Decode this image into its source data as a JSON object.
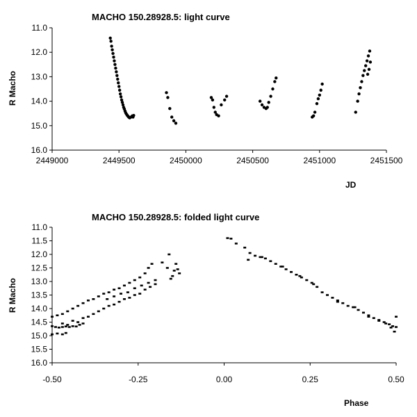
{
  "chart_data": [
    {
      "type": "scatter",
      "title": "MACHO 150.28928.5: light curve",
      "xlabel": "JD",
      "ylabel": "R Macho",
      "xlim": [
        2449000,
        2451500
      ],
      "ylim": [
        11.0,
        16.0
      ],
      "y_inverted": true,
      "grid": false,
      "xticks": [
        "2449000",
        "2449500",
        "2450000",
        "2450500",
        "2451000",
        "2451500"
      ],
      "yticks": [
        "11.0",
        "12.0",
        "13.0",
        "14.0",
        "15.0",
        "16.0"
      ],
      "marker_color": "#000000",
      "points": [
        [
          2449435,
          11.42
        ],
        [
          2449440,
          11.55
        ],
        [
          2449445,
          11.75
        ],
        [
          2449450,
          11.9
        ],
        [
          2449455,
          12.05
        ],
        [
          2449460,
          12.2
        ],
        [
          2449465,
          12.35
        ],
        [
          2449470,
          12.5
        ],
        [
          2449475,
          12.65
        ],
        [
          2449480,
          12.8
        ],
        [
          2449485,
          12.95
        ],
        [
          2449490,
          13.1
        ],
        [
          2449495,
          13.25
        ],
        [
          2449500,
          13.4
        ],
        [
          2449505,
          13.55
        ],
        [
          2449510,
          13.7
        ],
        [
          2449515,
          13.82
        ],
        [
          2449520,
          13.95
        ],
        [
          2449525,
          14.05
        ],
        [
          2449530,
          14.15
        ],
        [
          2449535,
          14.25
        ],
        [
          2449540,
          14.32
        ],
        [
          2449545,
          14.4
        ],
        [
          2449550,
          14.47
        ],
        [
          2449555,
          14.52
        ],
        [
          2449560,
          14.56
        ],
        [
          2449565,
          14.6
        ],
        [
          2449570,
          14.63
        ],
        [
          2449575,
          14.66
        ],
        [
          2449580,
          14.68
        ],
        [
          2449590,
          14.65
        ],
        [
          2449600,
          14.6
        ],
        [
          2449605,
          14.65
        ],
        [
          2449610,
          14.58
        ],
        [
          2449855,
          13.65
        ],
        [
          2449865,
          13.85
        ],
        [
          2449880,
          14.3
        ],
        [
          2449895,
          14.65
        ],
        [
          2449910,
          14.8
        ],
        [
          2449925,
          14.9
        ],
        [
          2450190,
          13.85
        ],
        [
          2450200,
          13.95
        ],
        [
          2450210,
          14.25
        ],
        [
          2450220,
          14.45
        ],
        [
          2450230,
          14.55
        ],
        [
          2450245,
          14.6
        ],
        [
          2450265,
          14.15
        ],
        [
          2450290,
          13.95
        ],
        [
          2450305,
          13.8
        ],
        [
          2450555,
          14.0
        ],
        [
          2450570,
          14.15
        ],
        [
          2450585,
          14.25
        ],
        [
          2450600,
          14.3
        ],
        [
          2450610,
          14.25
        ],
        [
          2450620,
          14.05
        ],
        [
          2450635,
          13.8
        ],
        [
          2450650,
          13.5
        ],
        [
          2450665,
          13.2
        ],
        [
          2450675,
          13.05
        ],
        [
          2450945,
          14.65
        ],
        [
          2450955,
          14.6
        ],
        [
          2450965,
          14.45
        ],
        [
          2450980,
          14.1
        ],
        [
          2450990,
          13.9
        ],
        [
          2451000,
          13.75
        ],
        [
          2451010,
          13.55
        ],
        [
          2451020,
          13.3
        ],
        [
          2451270,
          14.45
        ],
        [
          2451285,
          14.0
        ],
        [
          2451295,
          13.7
        ],
        [
          2451305,
          13.45
        ],
        [
          2451315,
          13.2
        ],
        [
          2451325,
          12.95
        ],
        [
          2451335,
          12.75
        ],
        [
          2451345,
          12.55
        ],
        [
          2451355,
          12.35
        ],
        [
          2451365,
          12.15
        ],
        [
          2451375,
          11.95
        ],
        [
          2451360,
          12.9
        ],
        [
          2451370,
          12.7
        ],
        [
          2451380,
          12.4
        ]
      ]
    },
    {
      "type": "scatter",
      "title": "MACHO 150.28928.5: folded light curve",
      "xlabel": "Phase",
      "ylabel": "R Macho",
      "xlim": [
        -0.5,
        0.5
      ],
      "ylim": [
        11.0,
        16.0
      ],
      "y_inverted": true,
      "grid": false,
      "xticks": [
        "-0.50",
        "-0.25",
        "0.00",
        "0.25",
        "0.50"
      ],
      "yticks": [
        "11.0",
        "11.5",
        "12.0",
        "12.5",
        "13.0",
        "13.5",
        "14.0",
        "14.5",
        "15.0",
        "15.5",
        "16.0"
      ],
      "marker_color": "#000000",
      "points": [
        [
          -0.5,
          14.65
        ],
        [
          -0.49,
          14.68
        ],
        [
          -0.48,
          14.7
        ],
        [
          -0.47,
          14.68
        ],
        [
          -0.46,
          14.66
        ],
        [
          -0.45,
          14.68
        ],
        [
          -0.44,
          14.65
        ],
        [
          -0.43,
          14.66
        ],
        [
          -0.42,
          14.6
        ],
        [
          -0.41,
          14.55
        ],
        [
          -0.5,
          14.95
        ],
        [
          -0.485,
          14.92
        ],
        [
          -0.47,
          14.95
        ],
        [
          -0.46,
          14.9
        ],
        [
          -0.5,
          14.3
        ],
        [
          -0.485,
          14.25
        ],
        [
          -0.47,
          14.2
        ],
        [
          -0.455,
          14.1
        ],
        [
          -0.44,
          14.0
        ],
        [
          -0.425,
          13.9
        ],
        [
          -0.41,
          13.8
        ],
        [
          -0.395,
          13.7
        ],
        [
          -0.38,
          13.65
        ],
        [
          -0.365,
          13.55
        ],
        [
          -0.35,
          13.45
        ],
        [
          -0.335,
          13.4
        ],
        [
          -0.32,
          13.3
        ],
        [
          -0.305,
          13.25
        ],
        [
          -0.29,
          13.15
        ],
        [
          -0.275,
          13.05
        ],
        [
          -0.26,
          12.95
        ],
        [
          -0.245,
          12.85
        ],
        [
          -0.23,
          12.7
        ],
        [
          -0.22,
          12.5
        ],
        [
          -0.21,
          12.35
        ],
        [
          -0.47,
          14.55
        ],
        [
          -0.455,
          14.6
        ],
        [
          -0.44,
          14.45
        ],
        [
          -0.425,
          14.5
        ],
        [
          -0.41,
          14.35
        ],
        [
          -0.395,
          14.3
        ],
        [
          -0.38,
          14.2
        ],
        [
          -0.365,
          14.1
        ],
        [
          -0.35,
          14.0
        ],
        [
          -0.335,
          13.9
        ],
        [
          -0.32,
          13.85
        ],
        [
          -0.305,
          13.75
        ],
        [
          -0.29,
          13.65
        ],
        [
          -0.275,
          13.6
        ],
        [
          -0.26,
          13.5
        ],
        [
          -0.245,
          13.45
        ],
        [
          -0.23,
          13.3
        ],
        [
          -0.215,
          13.2
        ],
        [
          -0.2,
          13.1
        ],
        [
          -0.34,
          13.65
        ],
        [
          -0.32,
          13.55
        ],
        [
          -0.3,
          13.45
        ],
        [
          -0.28,
          13.4
        ],
        [
          -0.26,
          13.25
        ],
        [
          -0.24,
          13.15
        ],
        [
          -0.22,
          13.05
        ],
        [
          -0.2,
          12.95
        ],
        [
          -0.18,
          12.3
        ],
        [
          -0.165,
          12.5
        ],
        [
          -0.16,
          12.0
        ],
        [
          -0.155,
          12.9
        ],
        [
          -0.15,
          12.8
        ],
        [
          -0.145,
          12.6
        ],
        [
          -0.14,
          12.35
        ],
        [
          -0.135,
          12.55
        ],
        [
          -0.13,
          12.7
        ],
        [
          0.01,
          11.4
        ],
        [
          0.02,
          11.42
        ],
        [
          0.035,
          11.6
        ],
        [
          0.06,
          11.75
        ],
        [
          0.075,
          11.95
        ],
        [
          0.09,
          12.05
        ],
        [
          0.105,
          12.1
        ],
        [
          0.12,
          12.15
        ],
        [
          0.135,
          12.25
        ],
        [
          0.15,
          12.35
        ],
        [
          0.165,
          12.45
        ],
        [
          0.18,
          12.55
        ],
        [
          0.195,
          12.65
        ],
        [
          0.21,
          12.75
        ],
        [
          0.225,
          12.85
        ],
        [
          0.24,
          12.95
        ],
        [
          0.255,
          13.05
        ],
        [
          0.27,
          13.2
        ],
        [
          0.285,
          13.4
        ],
        [
          0.3,
          13.5
        ],
        [
          0.315,
          13.6
        ],
        [
          0.33,
          13.7
        ],
        [
          0.345,
          13.8
        ],
        [
          0.36,
          13.9
        ],
        [
          0.375,
          13.95
        ],
        [
          0.39,
          14.05
        ],
        [
          0.405,
          14.15
        ],
        [
          0.42,
          14.25
        ],
        [
          0.435,
          14.35
        ],
        [
          0.45,
          14.42
        ],
        [
          0.465,
          14.5
        ],
        [
          0.48,
          14.58
        ],
        [
          0.49,
          14.65
        ],
        [
          0.5,
          14.68
        ],
        [
          0.07,
          12.2
        ],
        [
          0.11,
          12.1
        ],
        [
          0.17,
          12.45
        ],
        [
          0.22,
          12.8
        ],
        [
          0.26,
          13.1
        ],
        [
          0.33,
          13.75
        ],
        [
          0.38,
          13.95
        ],
        [
          0.42,
          14.3
        ],
        [
          0.45,
          14.45
        ],
        [
          0.47,
          14.55
        ],
        [
          0.485,
          14.7
        ],
        [
          0.495,
          14.85
        ],
        [
          0.5,
          14.3
        ]
      ]
    }
  ]
}
